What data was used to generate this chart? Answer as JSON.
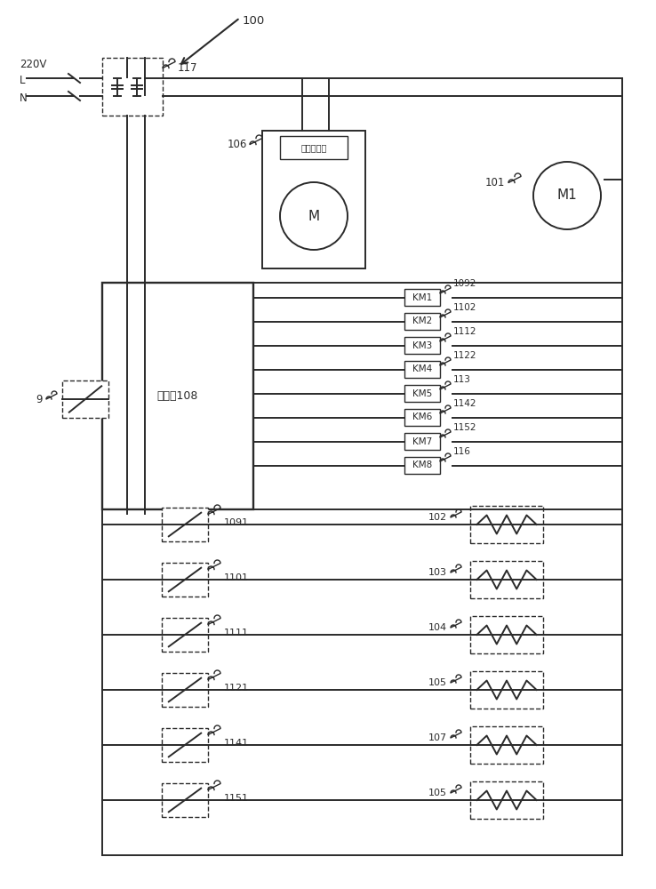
{
  "bg_color": "#ffffff",
  "line_color": "#2a2a2a",
  "km_labels": [
    "KM1",
    "KM2",
    "KM3",
    "KM4",
    "KM5",
    "KM6",
    "KM7",
    "KM8"
  ],
  "km_ids": [
    "1092",
    "1102",
    "1112",
    "1122",
    "113",
    "1142",
    "1152",
    "116"
  ],
  "switch_labels": [
    "1091",
    "1101",
    "1111",
    "1121",
    "1141",
    "1151"
  ],
  "motor_labels": [
    "102",
    "103",
    "104",
    "105",
    "107",
    "105"
  ],
  "label_100": "100",
  "label_117": "117",
  "label_106": "106",
  "label_9": "9",
  "label_101": "101",
  "text_220V": "220V",
  "text_L": "L",
  "text_N": "N",
  "text_M": "M",
  "text_M1": "M1",
  "text_motor_ctrl": "电机控制器",
  "text_controller": "控制器108"
}
